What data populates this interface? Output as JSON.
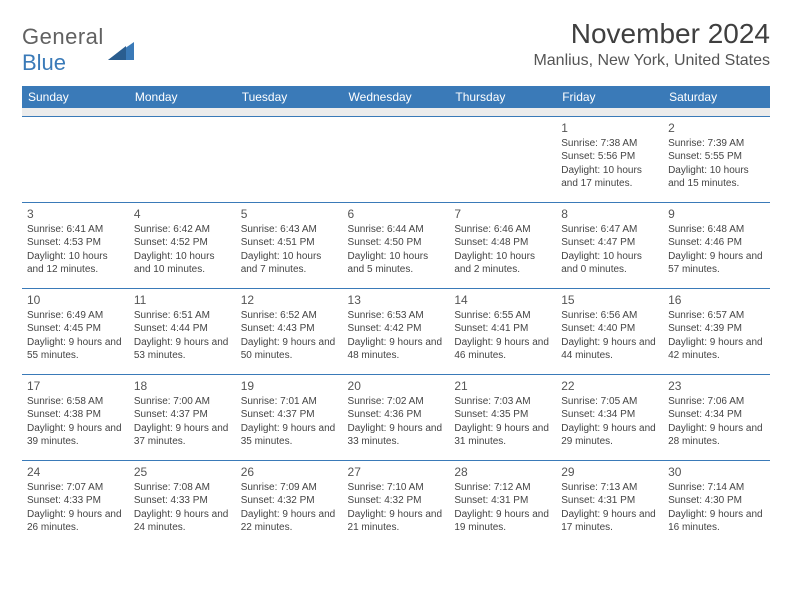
{
  "logo": {
    "general": "General",
    "blue": "Blue"
  },
  "title": "November 2024",
  "location": "Manlius, New York, United States",
  "colors": {
    "header_bg": "#3a7ab8",
    "header_fg": "#ffffff",
    "border": "#3a7ab8",
    "text": "#444444",
    "title": "#3f3f3f",
    "empty_bg": "#ececec"
  },
  "weekdays": [
    "Sunday",
    "Monday",
    "Tuesday",
    "Wednesday",
    "Thursday",
    "Friday",
    "Saturday"
  ],
  "weeks": [
    [
      null,
      null,
      null,
      null,
      null,
      {
        "d": "1",
        "sr": "7:38 AM",
        "ss": "5:56 PM",
        "dl": "10 hours and 17 minutes."
      },
      {
        "d": "2",
        "sr": "7:39 AM",
        "ss": "5:55 PM",
        "dl": "10 hours and 15 minutes."
      }
    ],
    [
      {
        "d": "3",
        "sr": "6:41 AM",
        "ss": "4:53 PM",
        "dl": "10 hours and 12 minutes."
      },
      {
        "d": "4",
        "sr": "6:42 AM",
        "ss": "4:52 PM",
        "dl": "10 hours and 10 minutes."
      },
      {
        "d": "5",
        "sr": "6:43 AM",
        "ss": "4:51 PM",
        "dl": "10 hours and 7 minutes."
      },
      {
        "d": "6",
        "sr": "6:44 AM",
        "ss": "4:50 PM",
        "dl": "10 hours and 5 minutes."
      },
      {
        "d": "7",
        "sr": "6:46 AM",
        "ss": "4:48 PM",
        "dl": "10 hours and 2 minutes."
      },
      {
        "d": "8",
        "sr": "6:47 AM",
        "ss": "4:47 PM",
        "dl": "10 hours and 0 minutes."
      },
      {
        "d": "9",
        "sr": "6:48 AM",
        "ss": "4:46 PM",
        "dl": "9 hours and 57 minutes."
      }
    ],
    [
      {
        "d": "10",
        "sr": "6:49 AM",
        "ss": "4:45 PM",
        "dl": "9 hours and 55 minutes."
      },
      {
        "d": "11",
        "sr": "6:51 AM",
        "ss": "4:44 PM",
        "dl": "9 hours and 53 minutes."
      },
      {
        "d": "12",
        "sr": "6:52 AM",
        "ss": "4:43 PM",
        "dl": "9 hours and 50 minutes."
      },
      {
        "d": "13",
        "sr": "6:53 AM",
        "ss": "4:42 PM",
        "dl": "9 hours and 48 minutes."
      },
      {
        "d": "14",
        "sr": "6:55 AM",
        "ss": "4:41 PM",
        "dl": "9 hours and 46 minutes."
      },
      {
        "d": "15",
        "sr": "6:56 AM",
        "ss": "4:40 PM",
        "dl": "9 hours and 44 minutes."
      },
      {
        "d": "16",
        "sr": "6:57 AM",
        "ss": "4:39 PM",
        "dl": "9 hours and 42 minutes."
      }
    ],
    [
      {
        "d": "17",
        "sr": "6:58 AM",
        "ss": "4:38 PM",
        "dl": "9 hours and 39 minutes."
      },
      {
        "d": "18",
        "sr": "7:00 AM",
        "ss": "4:37 PM",
        "dl": "9 hours and 37 minutes."
      },
      {
        "d": "19",
        "sr": "7:01 AM",
        "ss": "4:37 PM",
        "dl": "9 hours and 35 minutes."
      },
      {
        "d": "20",
        "sr": "7:02 AM",
        "ss": "4:36 PM",
        "dl": "9 hours and 33 minutes."
      },
      {
        "d": "21",
        "sr": "7:03 AM",
        "ss": "4:35 PM",
        "dl": "9 hours and 31 minutes."
      },
      {
        "d": "22",
        "sr": "7:05 AM",
        "ss": "4:34 PM",
        "dl": "9 hours and 29 minutes."
      },
      {
        "d": "23",
        "sr": "7:06 AM",
        "ss": "4:34 PM",
        "dl": "9 hours and 28 minutes."
      }
    ],
    [
      {
        "d": "24",
        "sr": "7:07 AM",
        "ss": "4:33 PM",
        "dl": "9 hours and 26 minutes."
      },
      {
        "d": "25",
        "sr": "7:08 AM",
        "ss": "4:33 PM",
        "dl": "9 hours and 24 minutes."
      },
      {
        "d": "26",
        "sr": "7:09 AM",
        "ss": "4:32 PM",
        "dl": "9 hours and 22 minutes."
      },
      {
        "d": "27",
        "sr": "7:10 AM",
        "ss": "4:32 PM",
        "dl": "9 hours and 21 minutes."
      },
      {
        "d": "28",
        "sr": "7:12 AM",
        "ss": "4:31 PM",
        "dl": "9 hours and 19 minutes."
      },
      {
        "d": "29",
        "sr": "7:13 AM",
        "ss": "4:31 PM",
        "dl": "9 hours and 17 minutes."
      },
      {
        "d": "30",
        "sr": "7:14 AM",
        "ss": "4:30 PM",
        "dl": "9 hours and 16 minutes."
      }
    ]
  ],
  "labels": {
    "sunrise": "Sunrise:",
    "sunset": "Sunset:",
    "daylight": "Daylight:"
  }
}
